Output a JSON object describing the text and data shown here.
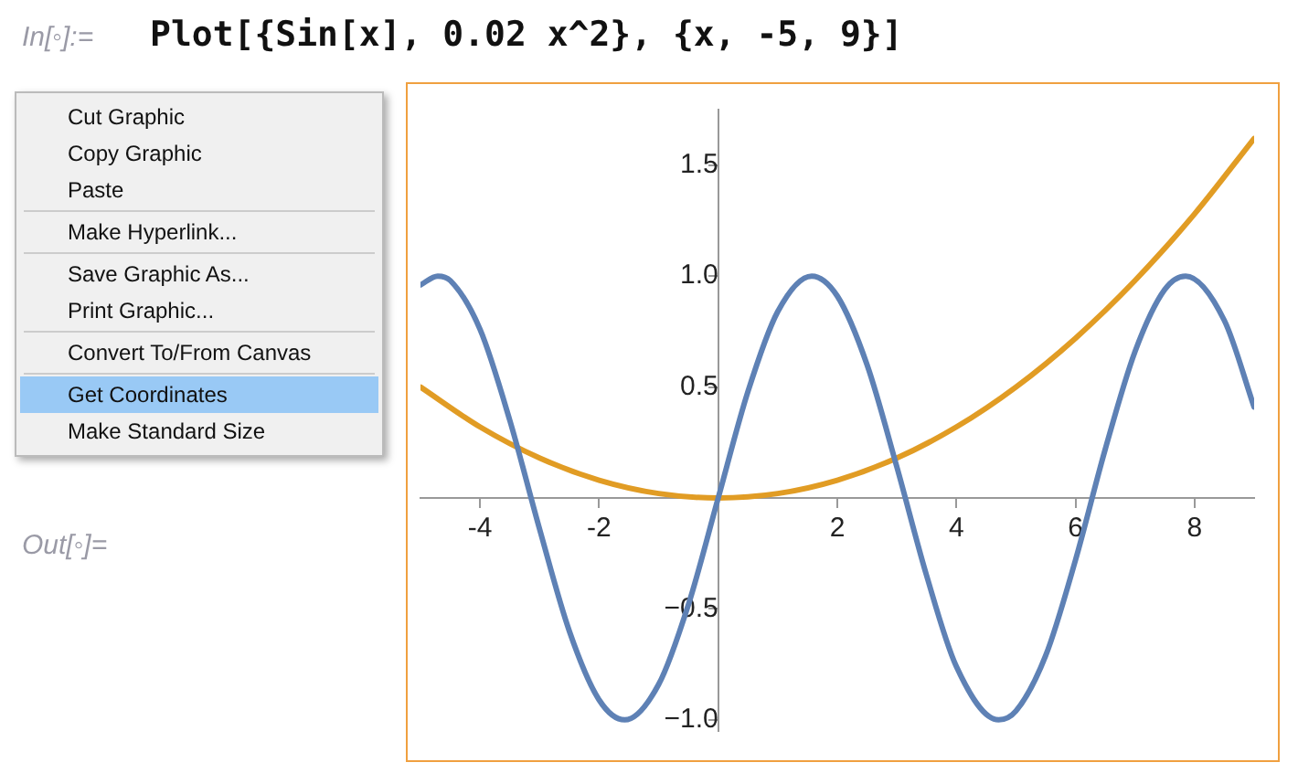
{
  "chart_data": {
    "type": "line",
    "title": "Plot[{Sin[x], 0.02 x^2}, {x, -5, 9}]",
    "annotations": [
      "In[◦]:=",
      "Out[◦]=",
      "Cut Graphic",
      "Copy Graphic",
      "Paste",
      "Make Hyperlink...",
      "Save Graphic As...",
      "Print Graphic...",
      "Convert To/From Canvas",
      "Get Coordinates",
      "Make Standard Size"
    ],
    "series": [
      {
        "color": "#5e81b5",
        "x": [
          -5,
          -4.71,
          -4.5,
          -4,
          -3.5,
          -3,
          -2.5,
          -2,
          -1.57,
          -1,
          -0.5,
          0,
          0.5,
          1,
          1.57,
          2,
          2.5,
          3,
          3.5,
          4,
          4.71,
          5,
          5.5,
          6,
          6.5,
          7,
          7.5,
          7.85,
          8.5,
          9
        ],
        "values": [
          0.96,
          1.0,
          0.98,
          0.76,
          0.35,
          -0.14,
          -0.6,
          -0.91,
          -1.0,
          -0.84,
          -0.48,
          0,
          0.48,
          0.84,
          1.0,
          0.91,
          0.6,
          0.14,
          -0.35,
          -0.76,
          -1.0,
          -0.96,
          -0.71,
          -0.28,
          0.22,
          0.66,
          0.94,
          1.0,
          0.8,
          0.41
        ]
      },
      {
        "color": "#e19c24",
        "x": [
          -5,
          -4,
          -3,
          -2,
          -1,
          0,
          1,
          2,
          3,
          4,
          5,
          6,
          7,
          8,
          9
        ],
        "values": [
          0.5,
          0.32,
          0.18,
          0.08,
          0.02,
          0,
          0.02,
          0.08,
          0.18,
          0.32,
          0.5,
          0.72,
          0.98,
          1.28,
          1.62
        ]
      }
    ],
    "xlim": [
      -5,
      9
    ],
    "xticks": [
      -4,
      -2,
      2,
      4,
      6,
      8
    ],
    "ylim": [
      -1.05,
      1.75
    ],
    "yticks": [
      {
        "value": -1,
        "label": "−1.0"
      },
      {
        "value": -0.5,
        "label": "−0.5"
      },
      {
        "value": 0.5,
        "label": "0.5"
      },
      {
        "value": 1,
        "label": "1.0"
      },
      {
        "value": 1.5,
        "label": "1.5"
      }
    ],
    "grid": false,
    "legend": false,
    "marker": "none",
    "line_style": "solid"
  }
}
